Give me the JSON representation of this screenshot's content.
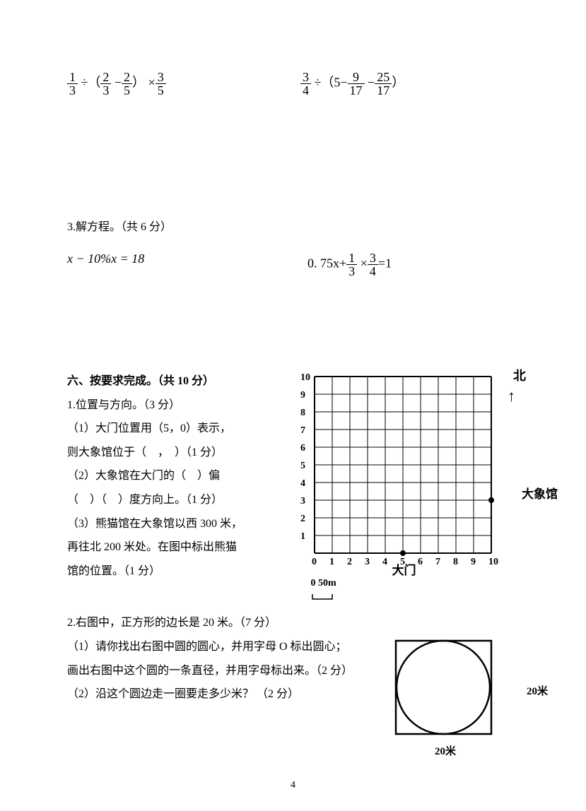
{
  "eq1": {
    "f1n": "1",
    "f1d": "3",
    "f2n": "2",
    "f2d": "3",
    "f3n": "2",
    "f3d": "5",
    "f4n": "3",
    "f4d": "5"
  },
  "eq2": {
    "f1n": "3",
    "f1d": "4",
    "c": "5",
    "f2n": "9",
    "f2d": "17",
    "f3n": "25",
    "f3d": "17"
  },
  "q3": {
    "title": "3.解方程。（共 6 分）",
    "eq_left": "x − 10%x = 18",
    "eq_right_prefix": "0. 75x+",
    "f1n": "1",
    "f1d": "3",
    "f2n": "3",
    "f2d": "4",
    "eq_right_suffix": "=1"
  },
  "s6": {
    "title": "六、按要求完成。（共 10 分）",
    "q1_title": "1.位置与方向。（3 分）",
    "q1_1a": "（1）大门位置用（5，0）表示，",
    "q1_1b": "则大象馆位于（　，　）（1 分）",
    "q1_2a": "（2）大象馆在大门的（　）偏",
    "q1_2b": "（　）（　）度方向上。（1 分）",
    "q1_3a": "（3）熊猫馆在大象馆以西 300 米，",
    "q1_3b": "再往北 200 米处。在图中标出熊猫",
    "q1_3c": "馆的位置。（1 分）",
    "north": "北",
    "elephant": "大象馆",
    "gate": "大门",
    "scale_text": "0 50m",
    "ticks": [
      "0",
      "1",
      "2",
      "3",
      "4",
      "5",
      "6",
      "7",
      "8",
      "9",
      "10"
    ],
    "yticks": [
      "1",
      "2",
      "3",
      "4",
      "5",
      "6",
      "7",
      "8",
      "9",
      "10"
    ]
  },
  "q2s": {
    "title": "2.右图中，正方形的边长是 20 米。（7 分）",
    "l1": "（1）请你找出右图中圆的圆心，并用字母 O 标出圆心；",
    "l2": "画出右图中这个圆的一条直径，并用字母标出来。（2 分）",
    "l3": "（2）沿这个圆边走一圈要走多少米？ （2 分）",
    "side_r": "20米",
    "side_b": "20米"
  },
  "pagenum": "4"
}
